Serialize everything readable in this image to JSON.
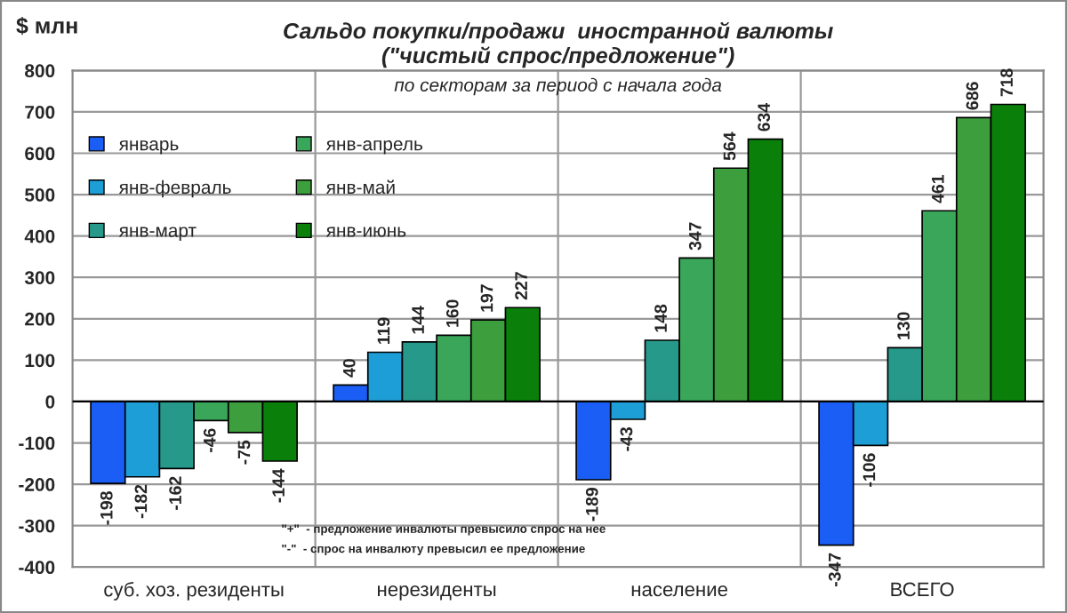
{
  "chart_data": {
    "type": "bar",
    "title": "Сальдо покупки/продажи  иностранной валюты\n(\"чистый спрос/предложение\")",
    "subtitle": "по секторам за период с начала года",
    "ylabel": "$ млн",
    "categories": [
      "суб. хоз. резиденты",
      "нерезиденты",
      "население",
      "ВСЕГО"
    ],
    "series": [
      {
        "name": "январь",
        "color": "#1a5ef5",
        "values": [
          -198,
          40,
          -189,
          -347
        ]
      },
      {
        "name": "янв-февраль",
        "color": "#1e9ed6",
        "values": [
          -182,
          119,
          -43,
          -106
        ]
      },
      {
        "name": "янв-март",
        "color": "#26998a",
        "values": [
          -162,
          144,
          148,
          130
        ]
      },
      {
        "name": "янв-апрель",
        "color": "#3aa65a",
        "values": [
          -46,
          160,
          347,
          461
        ]
      },
      {
        "name": "янв-май",
        "color": "#3c9e3c",
        "values": [
          -75,
          197,
          564,
          686
        ]
      },
      {
        "name": "янв-июнь",
        "color": "#0a7f0a",
        "values": [
          -144,
          227,
          634,
          718
        ]
      }
    ],
    "ylim": [
      -400,
      800
    ],
    "yticks": [
      -400,
      -300,
      -200,
      -100,
      0,
      100,
      200,
      300,
      400,
      500,
      600,
      700,
      800
    ],
    "grid": true,
    "legend": "top left",
    "data_labels": true,
    "annotations": [
      "\"+\"  - предложение инвалюты превысило спрос на нее",
      "\"-\"  - спрос на инвалюту превысил ее предложение"
    ]
  }
}
